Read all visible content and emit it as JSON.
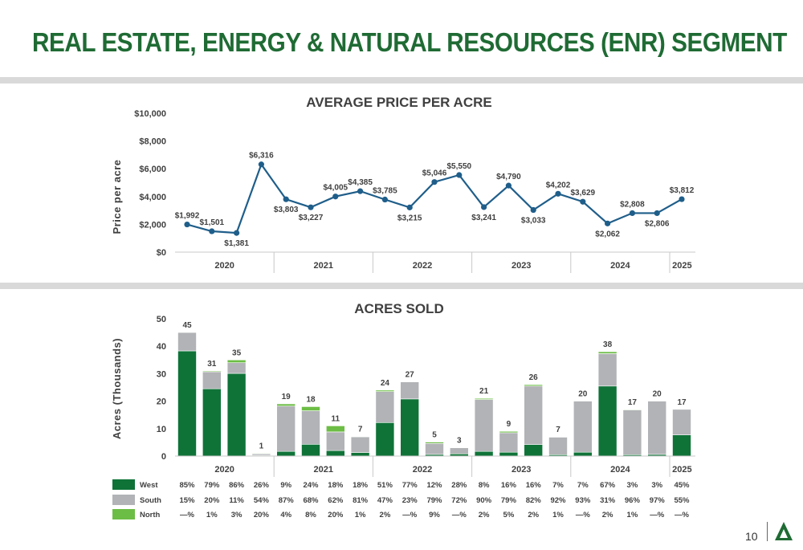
{
  "page": {
    "title": "REAL ESTATE, ENERGY & NATURAL RESOURCES (ENR) SEGMENT",
    "page_number": "10",
    "colors": {
      "brand_green": "#1f6b34",
      "west": "#0f7338",
      "south": "#b1b3b6",
      "north": "#6cbd45",
      "line": "#1f5e8a"
    }
  },
  "price_chart": {
    "title": "AVERAGE PRICE PER ACRE",
    "ylabel": "Price per acre",
    "yticks": [
      "$0",
      "$2,000",
      "$4,000",
      "$6,000",
      "$8,000",
      "$10,000"
    ],
    "years": [
      "2020",
      "2021",
      "2022",
      "2023",
      "2024",
      "2025"
    ]
  },
  "acres_chart": {
    "title": "ACRES SOLD",
    "ylabel": "Acres (Thousands)",
    "yticks": [
      "0",
      "10",
      "20",
      "30",
      "40",
      "50"
    ],
    "years": [
      "2020",
      "2021",
      "2022",
      "2023",
      "2024",
      "2025"
    ],
    "legend": [
      "West",
      "South",
      "North"
    ],
    "pct_rows": [
      [
        "85%",
        "79%",
        "86%",
        "26%",
        "9%",
        "24%",
        "18%",
        "18%",
        "51%",
        "77%",
        "12%",
        "28%",
        "8%",
        "16%",
        "16%",
        "7%",
        "7%",
        "67%",
        "3%",
        "3%",
        "45%"
      ],
      [
        "15%",
        "20%",
        "11%",
        "54%",
        "87%",
        "68%",
        "62%",
        "81%",
        "47%",
        "23%",
        "79%",
        "72%",
        "90%",
        "79%",
        "82%",
        "92%",
        "93%",
        "31%",
        "96%",
        "97%",
        "55%"
      ],
      [
        "—%",
        "1%",
        "3%",
        "20%",
        "4%",
        "8%",
        "20%",
        "1%",
        "2%",
        "—%",
        "9%",
        "—%",
        "2%",
        "5%",
        "2%",
        "1%",
        "—%",
        "2%",
        "1%",
        "—%",
        "—%"
      ]
    ]
  },
  "chart_data": [
    {
      "type": "line",
      "title": "AVERAGE PRICE PER ACRE",
      "xlabel": "",
      "ylabel": "Price per acre",
      "ylim": [
        0,
        10000
      ],
      "grid": false,
      "x_groups": [
        {
          "label": "2020",
          "count": 4
        },
        {
          "label": "2021",
          "count": 4
        },
        {
          "label": "2022",
          "count": 4
        },
        {
          "label": "2023",
          "count": 4
        },
        {
          "label": "2024",
          "count": 4
        },
        {
          "label": "2025",
          "count": 1
        }
      ],
      "values": [
        1992,
        1501,
        1381,
        6316,
        3803,
        3227,
        4005,
        4385,
        3785,
        3215,
        5046,
        5550,
        3241,
        4790,
        3033,
        4202,
        3629,
        2062,
        2808,
        2806,
        3812
      ],
      "labels": [
        "$1,992",
        "$1,501",
        "$1,381",
        "$6,316",
        "$3,803",
        "$3,227",
        "$4,005",
        "$4,385",
        "$3,785",
        "$3,215",
        "$5,046",
        "$5,550",
        "$3,241",
        "$4,790",
        "$3,033",
        "$4,202",
        "$3,629",
        "$2,062",
        "$2,808",
        "$2,806",
        "$3,812"
      ]
    },
    {
      "type": "bar",
      "stacked": true,
      "title": "ACRES SOLD",
      "xlabel": "",
      "ylabel": "Acres (Thousands)",
      "ylim": [
        0,
        50
      ],
      "grid": false,
      "legend": "bottom-left",
      "totals": [
        45,
        31,
        35,
        1,
        19,
        18,
        11,
        7,
        24,
        27,
        5,
        3,
        21,
        9,
        26,
        7,
        20,
        38,
        17,
        20,
        17
      ],
      "series": [
        {
          "name": "West",
          "values": [
            38.3,
            24.5,
            30.1,
            0.26,
            1.7,
            4.3,
            2.0,
            1.3,
            12.2,
            20.8,
            0.6,
            0.8,
            1.7,
            1.4,
            4.2,
            0.5,
            1.4,
            25.5,
            0.5,
            0.6,
            7.7
          ]
        },
        {
          "name": "South",
          "values": [
            6.7,
            6.2,
            3.9,
            0.54,
            16.5,
            12.2,
            6.8,
            5.7,
            11.3,
            6.2,
            4.0,
            2.2,
            18.9,
            7.1,
            21.3,
            6.4,
            18.6,
            11.8,
            16.3,
            19.4,
            9.3
          ]
        },
        {
          "name": "North",
          "values": [
            0,
            0.3,
            1.0,
            0.2,
            0.8,
            1.5,
            2.2,
            0.1,
            0.5,
            0,
            0.5,
            0,
            0.4,
            0.5,
            0.5,
            0.1,
            0,
            0.7,
            0.2,
            0,
            0
          ]
        }
      ]
    }
  ]
}
